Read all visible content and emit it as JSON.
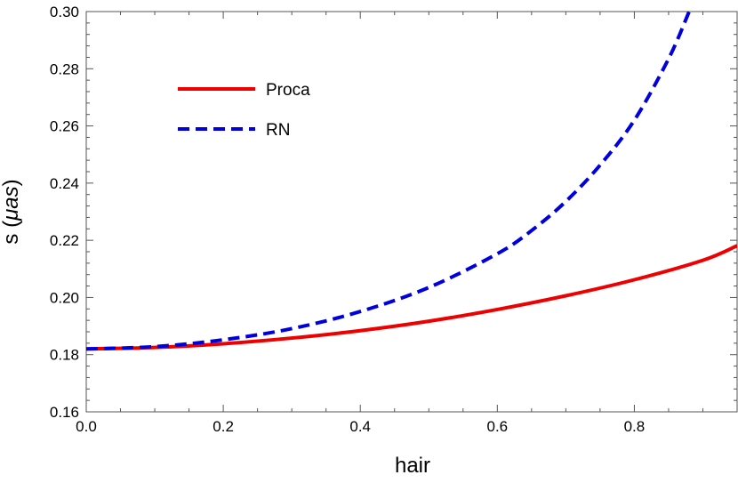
{
  "chart_data": {
    "type": "line",
    "xlabel": "hair",
    "ylabel_prefix": "s (",
    "ylabel_unit": "μas",
    "ylabel_suffix": ")",
    "xlim": [
      0.0,
      0.95
    ],
    "ylim": [
      0.16,
      0.3
    ],
    "x_ticks": [
      0.0,
      0.2,
      0.4,
      0.6,
      0.8
    ],
    "x_tick_labels": [
      "0.0",
      "0.2",
      "0.4",
      "0.6",
      "0.8"
    ],
    "y_ticks": [
      0.16,
      0.18,
      0.2,
      0.22,
      0.24,
      0.26,
      0.28,
      0.3
    ],
    "y_tick_labels": [
      "0.16",
      "0.18",
      "0.20",
      "0.22",
      "0.24",
      "0.26",
      "0.28",
      "0.30"
    ],
    "grid": false,
    "legend_position": "top-left",
    "series": [
      {
        "name": "Proca",
        "color": "#ee0000",
        "style": "solid",
        "x": [
          0.0,
          0.1,
          0.2,
          0.3,
          0.4,
          0.5,
          0.6,
          0.7,
          0.8,
          0.9,
          0.95
        ],
        "y": [
          0.182,
          0.1825,
          0.1838,
          0.1858,
          0.1884,
          0.1917,
          0.1958,
          0.2006,
          0.2062,
          0.213,
          0.2181
        ]
      },
      {
        "name": "RN",
        "color": "#0000dd",
        "style": "dashed",
        "x": [
          0.0,
          0.1,
          0.2,
          0.3,
          0.4,
          0.5,
          0.6,
          0.65,
          0.7,
          0.75,
          0.8,
          0.85,
          0.88
        ],
        "y": [
          0.182,
          0.1828,
          0.1852,
          0.1891,
          0.1951,
          0.2035,
          0.2153,
          0.2234,
          0.2336,
          0.2463,
          0.262,
          0.2835,
          0.3
        ]
      }
    ]
  }
}
